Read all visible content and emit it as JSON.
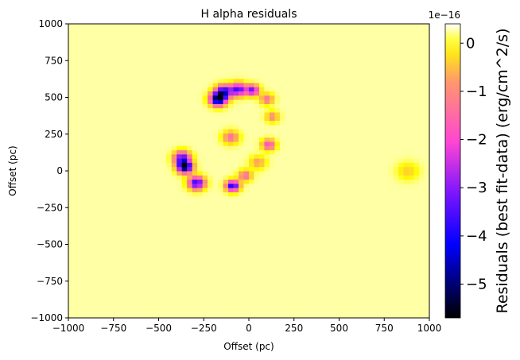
{
  "chart_data": {
    "type": "heatmap",
    "title": "H alpha residuals",
    "xlabel": "Offset (pc)",
    "ylabel": "Offset (pc)",
    "xlim": [
      -1000,
      1000
    ],
    "ylim": [
      -1000,
      1000
    ],
    "x_ticks": [
      -1000,
      -750,
      -500,
      -250,
      0,
      250,
      500,
      750,
      1000
    ],
    "y_ticks": [
      -1000,
      -750,
      -500,
      -250,
      0,
      250,
      500,
      750,
      1000
    ],
    "x_tick_labels": [
      "−1000",
      "−750",
      "−500",
      "−250",
      "0",
      "250",
      "500",
      "750",
      "1000"
    ],
    "y_tick_labels": [
      "−1000",
      "−750",
      "−500",
      "−250",
      "0",
      "250",
      "500",
      "750",
      "1000"
    ],
    "colormap": "gnuplot2",
    "colorbar": {
      "label": "Residuals (best fit-data) (erg/cm^2/s)",
      "exponent_label": "1e−16",
      "range": [
        -5.7,
        0.4
      ],
      "ticks": [
        0,
        -1,
        -2,
        -3,
        -4,
        -5
      ],
      "tick_labels": [
        "0",
        "−1",
        "−2",
        "−3",
        "−4",
        "−5"
      ]
    },
    "background_value": 0.25,
    "features": [
      {
        "x": -170,
        "y": 490,
        "value": -5.5,
        "radius": 30
      },
      {
        "x": -140,
        "y": 540,
        "value": -4.0,
        "radius": 30
      },
      {
        "x": -60,
        "y": 555,
        "value": -3.6,
        "radius": 30
      },
      {
        "x": 20,
        "y": 550,
        "value": -3.2,
        "radius": 25
      },
      {
        "x": 100,
        "y": 490,
        "value": -1.4,
        "radius": 25
      },
      {
        "x": 130,
        "y": 370,
        "value": -1.0,
        "radius": 25
      },
      {
        "x": 110,
        "y": 180,
        "value": -2.0,
        "radius": 25
      },
      {
        "x": -100,
        "y": 230,
        "value": -1.4,
        "radius": 30
      },
      {
        "x": -370,
        "y": 90,
        "value": -3.4,
        "radius": 30
      },
      {
        "x": -355,
        "y": 30,
        "value": -5.6,
        "radius": 28
      },
      {
        "x": -290,
        "y": -80,
        "value": -3.9,
        "radius": 30
      },
      {
        "x": -90,
        "y": -100,
        "value": -4.2,
        "radius": 25
      },
      {
        "x": -20,
        "y": -30,
        "value": -1.5,
        "radius": 25
      },
      {
        "x": 50,
        "y": 60,
        "value": -0.8,
        "radius": 30
      },
      {
        "x": 880,
        "y": 0,
        "value": -0.4,
        "radius": 40
      }
    ]
  }
}
